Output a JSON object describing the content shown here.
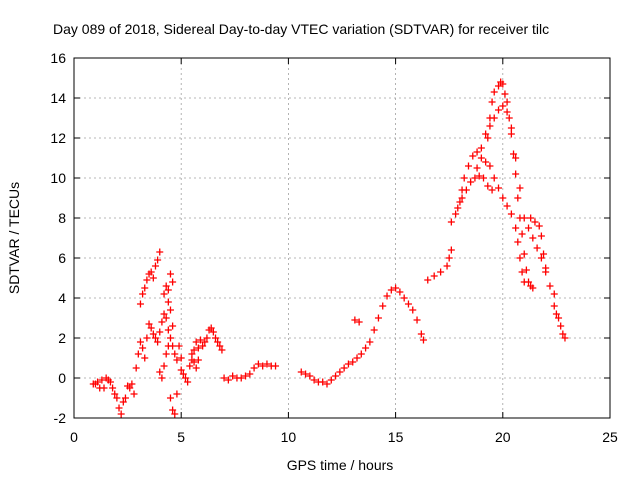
{
  "chart_data": {
    "type": "scatter",
    "title": "Day 089 of 2018, Sidereal Day-to-day VTEC variation (SDTVAR) for receiver tilc",
    "xlabel": "GPS time / hours",
    "ylabel": "SDTVAR / TECUs",
    "xlim": [
      0,
      25
    ],
    "ylim": [
      -2,
      16
    ],
    "x_ticks": [
      0,
      5,
      10,
      15,
      20,
      25
    ],
    "y_ticks": [
      -2,
      0,
      2,
      4,
      6,
      8,
      10,
      12,
      14,
      16
    ],
    "grid": true,
    "marker": "+",
    "color": "#ff0000",
    "series": [
      {
        "name": "SDTVAR",
        "points": [
          [
            0.9,
            -0.3
          ],
          [
            1.0,
            -0.3
          ],
          [
            1.1,
            -0.2
          ],
          [
            1.2,
            -0.5
          ],
          [
            1.3,
            -0.1
          ],
          [
            1.4,
            -0.5
          ],
          [
            1.5,
            0.0
          ],
          [
            1.6,
            -0.1
          ],
          [
            1.7,
            -0.2
          ],
          [
            1.8,
            -0.5
          ],
          [
            1.9,
            -0.8
          ],
          [
            2.0,
            -1.0
          ],
          [
            2.1,
            -1.5
          ],
          [
            2.2,
            -1.8
          ],
          [
            2.3,
            -1.2
          ],
          [
            2.4,
            -1.0
          ],
          [
            2.5,
            -0.4
          ],
          [
            2.6,
            -0.5
          ],
          [
            2.7,
            -0.3
          ],
          [
            2.8,
            -0.8
          ],
          [
            2.9,
            0.5
          ],
          [
            3.0,
            1.2
          ],
          [
            3.1,
            1.8
          ],
          [
            3.2,
            1.5
          ],
          [
            3.3,
            1.0
          ],
          [
            3.4,
            2.0
          ],
          [
            3.5,
            2.7
          ],
          [
            3.6,
            2.5
          ],
          [
            3.7,
            2.2
          ],
          [
            3.8,
            2.0
          ],
          [
            3.9,
            1.8
          ],
          [
            4.0,
            2.3
          ],
          [
            4.1,
            2.8
          ],
          [
            4.2,
            3.2
          ],
          [
            4.3,
            3.0
          ],
          [
            3.1,
            3.7
          ],
          [
            3.2,
            4.2
          ],
          [
            3.3,
            4.5
          ],
          [
            3.4,
            4.9
          ],
          [
            3.5,
            5.2
          ],
          [
            3.6,
            5.3
          ],
          [
            3.7,
            5.0
          ],
          [
            3.8,
            5.6
          ],
          [
            3.9,
            5.9
          ],
          [
            4.0,
            6.3
          ],
          [
            4.2,
            4.2
          ],
          [
            4.3,
            4.6
          ],
          [
            4.4,
            4.4
          ],
          [
            4.5,
            5.2
          ],
          [
            4.6,
            4.8
          ],
          [
            4.4,
            3.8
          ],
          [
            4.5,
            3.4
          ],
          [
            4.6,
            2.6
          ],
          [
            4.4,
            2.4
          ],
          [
            4.5,
            2.0
          ],
          [
            4.6,
            1.6
          ],
          [
            4.7,
            1.2
          ],
          [
            4.8,
            0.9
          ],
          [
            4.9,
            1.6
          ],
          [
            5.0,
            1.0
          ],
          [
            4.5,
            -1.0
          ],
          [
            4.6,
            -1.6
          ],
          [
            4.7,
            -1.8
          ],
          [
            4.8,
            -0.8
          ],
          [
            4.0,
            0.3
          ],
          [
            4.1,
            0.0
          ],
          [
            4.2,
            0.6
          ],
          [
            4.3,
            1.2
          ],
          [
            4.4,
            1.6
          ],
          [
            5.0,
            0.4
          ],
          [
            5.1,
            0.2
          ],
          [
            5.2,
            0.0
          ],
          [
            5.3,
            -0.2
          ],
          [
            5.4,
            0.6
          ],
          [
            5.5,
            0.9
          ],
          [
            5.6,
            1.4
          ],
          [
            5.7,
            1.8
          ],
          [
            5.8,
            1.5
          ],
          [
            5.9,
            1.9
          ],
          [
            6.0,
            1.6
          ],
          [
            6.1,
            1.8
          ],
          [
            6.2,
            2.0
          ],
          [
            6.3,
            2.4
          ],
          [
            6.4,
            2.5
          ],
          [
            6.5,
            2.3
          ],
          [
            6.6,
            2.0
          ],
          [
            6.7,
            1.8
          ],
          [
            6.8,
            1.6
          ],
          [
            6.9,
            1.4
          ],
          [
            5.5,
            1.2
          ],
          [
            5.6,
            0.8
          ],
          [
            5.7,
            0.5
          ],
          [
            5.8,
            0.9
          ],
          [
            7.0,
            0.0
          ],
          [
            7.2,
            -0.1
          ],
          [
            7.4,
            0.1
          ],
          [
            7.6,
            0.0
          ],
          [
            7.8,
            0.0
          ],
          [
            8.0,
            0.1
          ],
          [
            8.2,
            0.2
          ],
          [
            8.4,
            0.5
          ],
          [
            8.6,
            0.7
          ],
          [
            8.8,
            0.6
          ],
          [
            9.0,
            0.7
          ],
          [
            9.2,
            0.6
          ],
          [
            9.4,
            0.6
          ],
          [
            10.6,
            0.3
          ],
          [
            10.8,
            0.2
          ],
          [
            11.0,
            0.1
          ],
          [
            11.2,
            -0.1
          ],
          [
            11.4,
            -0.2
          ],
          [
            11.6,
            -0.2
          ],
          [
            11.8,
            -0.3
          ],
          [
            12.0,
            -0.1
          ],
          [
            12.2,
            0.1
          ],
          [
            12.4,
            0.3
          ],
          [
            12.6,
            0.5
          ],
          [
            12.8,
            0.7
          ],
          [
            13.0,
            0.8
          ],
          [
            13.2,
            1.0
          ],
          [
            13.4,
            1.2
          ],
          [
            13.6,
            1.5
          ],
          [
            13.8,
            1.8
          ],
          [
            14.0,
            2.4
          ],
          [
            14.2,
            3.0
          ],
          [
            14.4,
            3.6
          ],
          [
            14.6,
            4.1
          ],
          [
            14.8,
            4.4
          ],
          [
            15.0,
            4.5
          ],
          [
            15.2,
            4.3
          ],
          [
            15.4,
            4.0
          ],
          [
            15.6,
            3.7
          ],
          [
            15.8,
            3.4
          ],
          [
            16.0,
            2.9
          ],
          [
            16.2,
            2.2
          ],
          [
            16.3,
            1.9
          ],
          [
            13.1,
            2.9
          ],
          [
            13.3,
            2.8
          ],
          [
            16.5,
            4.9
          ],
          [
            16.8,
            5.1
          ],
          [
            17.1,
            5.3
          ],
          [
            17.4,
            5.6
          ],
          [
            17.5,
            6.0
          ],
          [
            17.6,
            6.4
          ],
          [
            17.6,
            7.8
          ],
          [
            17.8,
            8.2
          ],
          [
            18.0,
            8.8
          ],
          [
            18.1,
            9.4
          ],
          [
            18.2,
            10.0
          ],
          [
            18.4,
            10.6
          ],
          [
            18.6,
            11.1
          ],
          [
            18.8,
            11.3
          ],
          [
            19.0,
            11.0
          ],
          [
            19.2,
            10.8
          ],
          [
            19.4,
            10.6
          ],
          [
            19.6,
            10.0
          ],
          [
            19.8,
            9.5
          ],
          [
            20.0,
            9.0
          ],
          [
            20.2,
            8.6
          ],
          [
            20.4,
            8.2
          ],
          [
            20.6,
            7.5
          ],
          [
            20.7,
            6.8
          ],
          [
            20.8,
            6.0
          ],
          [
            20.9,
            5.3
          ],
          [
            21.0,
            4.8
          ],
          [
            17.9,
            8.5
          ],
          [
            18.1,
            9.0
          ],
          [
            18.3,
            9.4
          ],
          [
            18.5,
            9.8
          ],
          [
            18.7,
            10.0
          ],
          [
            18.9,
            10.1
          ],
          [
            19.1,
            10.0
          ],
          [
            19.3,
            9.6
          ],
          [
            19.5,
            9.4
          ],
          [
            18.8,
            10.5
          ],
          [
            19.0,
            11.5
          ],
          [
            19.2,
            12.2
          ],
          [
            19.4,
            12.6
          ],
          [
            19.6,
            13.0
          ],
          [
            19.8,
            13.4
          ],
          [
            20.0,
            13.6
          ],
          [
            20.2,
            13.3
          ],
          [
            20.4,
            12.5
          ],
          [
            20.6,
            11.0
          ],
          [
            20.8,
            9.5
          ],
          [
            21.0,
            8.0
          ],
          [
            21.2,
            7.5
          ],
          [
            21.4,
            7.0
          ],
          [
            21.6,
            6.5
          ],
          [
            21.8,
            6.0
          ],
          [
            22.0,
            5.3
          ],
          [
            22.2,
            4.6
          ],
          [
            22.4,
            4.2
          ],
          [
            19.3,
            12.0
          ],
          [
            19.4,
            13.0
          ],
          [
            19.5,
            13.8
          ],
          [
            19.6,
            14.3
          ],
          [
            19.8,
            14.6
          ],
          [
            19.9,
            14.8
          ],
          [
            20.0,
            14.7
          ],
          [
            20.1,
            14.2
          ],
          [
            20.2,
            13.8
          ],
          [
            20.3,
            13.0
          ],
          [
            20.4,
            12.2
          ],
          [
            20.5,
            11.2
          ],
          [
            20.6,
            10.2
          ],
          [
            20.7,
            9.0
          ],
          [
            20.8,
            8.0
          ],
          [
            20.9,
            7.2
          ],
          [
            21.0,
            6.2
          ],
          [
            21.1,
            5.4
          ],
          [
            21.2,
            4.8
          ],
          [
            21.3,
            4.6
          ],
          [
            21.4,
            4.5
          ],
          [
            21.3,
            8.0
          ],
          [
            21.5,
            7.8
          ],
          [
            21.7,
            7.6
          ],
          [
            21.8,
            7.1
          ],
          [
            21.9,
            6.2
          ],
          [
            22.0,
            5.5
          ],
          [
            22.4,
            3.6
          ],
          [
            22.5,
            3.2
          ],
          [
            22.6,
            3.0
          ],
          [
            22.7,
            2.6
          ],
          [
            22.8,
            2.2
          ],
          [
            22.9,
            2.0
          ]
        ]
      }
    ]
  }
}
